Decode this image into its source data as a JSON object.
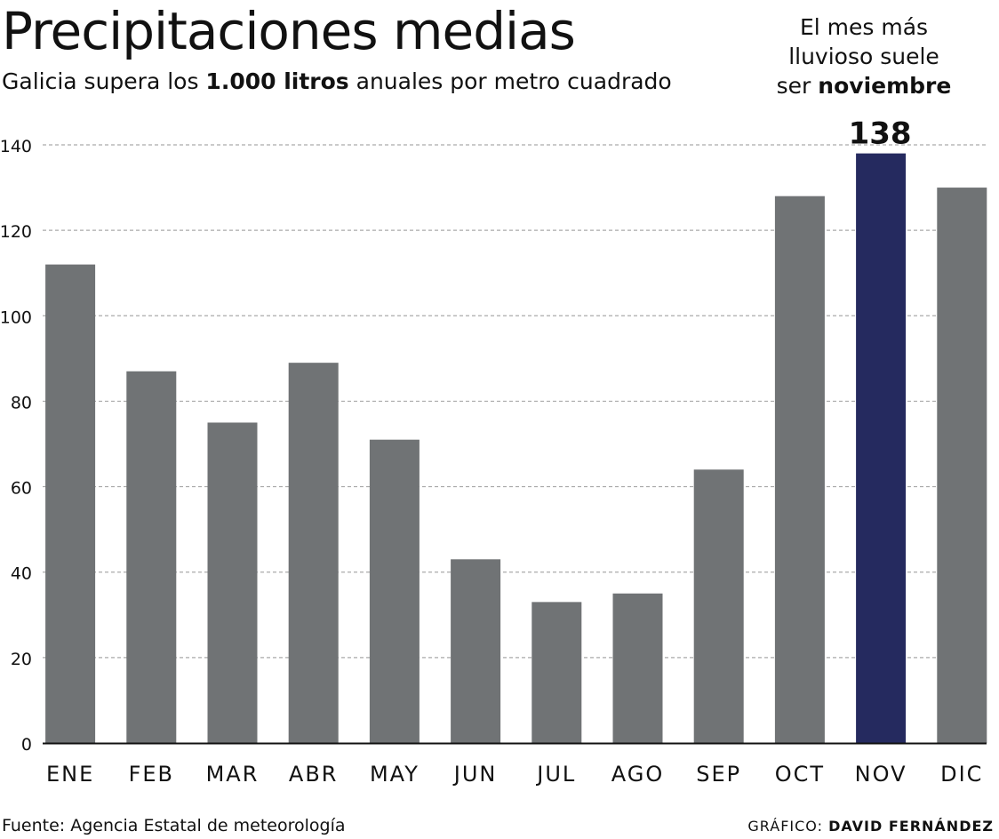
{
  "chart_data": {
    "type": "bar",
    "title": "Precipitaciones medias",
    "subtitle": {
      "before": "Galicia supera los ",
      "bold": "1.000 litros",
      "after": " anuales por metro cuadrado"
    },
    "categories": [
      "ENE",
      "FEB",
      "MAR",
      "ABR",
      "MAY",
      "JUN",
      "JUL",
      "AGO",
      "SEP",
      "OCT",
      "NOV",
      "DIC"
    ],
    "values": [
      112,
      87,
      75,
      89,
      71,
      43,
      33,
      35,
      64,
      128,
      138,
      130
    ],
    "highlight_index": 10,
    "highlight_label": "138",
    "yticks": [
      0,
      20,
      40,
      60,
      80,
      100,
      120,
      140
    ],
    "ylim": [
      0,
      141
    ],
    "grid": true,
    "annotation": {
      "line1": "El mes más",
      "line2": "lluvioso suele",
      "line3_prefix": "ser ",
      "line3_bold": "noviembre"
    },
    "colors": {
      "bar": "#707375",
      "highlight": "#252a5f",
      "grid": "#aaaaaa",
      "axis": "#111111"
    }
  },
  "footer": {
    "source": "Fuente: Agencia Estatal de meteorología",
    "credit_prefix": "GRÁFICO: ",
    "credit_name": "DAVID FERNÁNDEZ"
  }
}
